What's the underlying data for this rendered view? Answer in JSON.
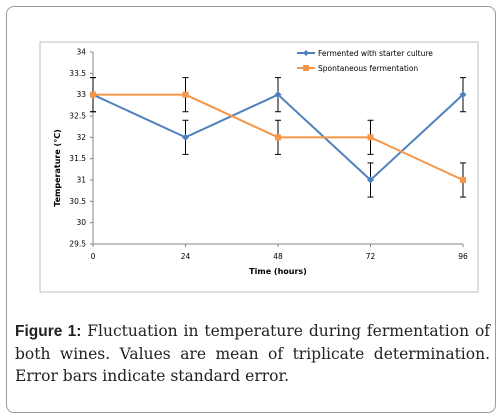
{
  "chart_data": {
    "type": "line",
    "x": [
      0,
      24,
      48,
      72,
      96
    ],
    "xlabel": "Time (hours)",
    "ylabel": "Temperature (°C)",
    "ylim": [
      29.5,
      34
    ],
    "yticks": [
      29.5,
      30,
      30.5,
      31,
      31.5,
      32,
      32.5,
      33,
      33.5,
      34
    ],
    "ytick_labels": [
      "29.5",
      "30",
      "30.5",
      "31",
      "31.5",
      "32",
      "32.5",
      "33",
      "33.5",
      "34"
    ],
    "xtick_labels": [
      "0",
      "24",
      "48",
      "72",
      "96"
    ],
    "grid": false,
    "legend_position": "top-right",
    "series": [
      {
        "name": "Fermented with starter culture",
        "values": [
          33,
          32,
          33,
          31,
          33
        ],
        "errors": [
          0.4,
          0.4,
          0.4,
          0.4,
          0.4
        ],
        "color": "#4f81bd",
        "marker": "diamond"
      },
      {
        "name": "Spontaneous fermentation",
        "values": [
          33,
          33,
          32,
          32,
          31
        ],
        "errors": [
          0.4,
          0.4,
          0.4,
          0.4,
          0.4
        ],
        "color": "#f79646",
        "marker": "square"
      }
    ]
  },
  "caption": {
    "label": "Figure 1:",
    "text": " Fluctuation in temperature during fermentation of both wines. Values are mean of triplicate determination. Error bars indicate standard error."
  }
}
